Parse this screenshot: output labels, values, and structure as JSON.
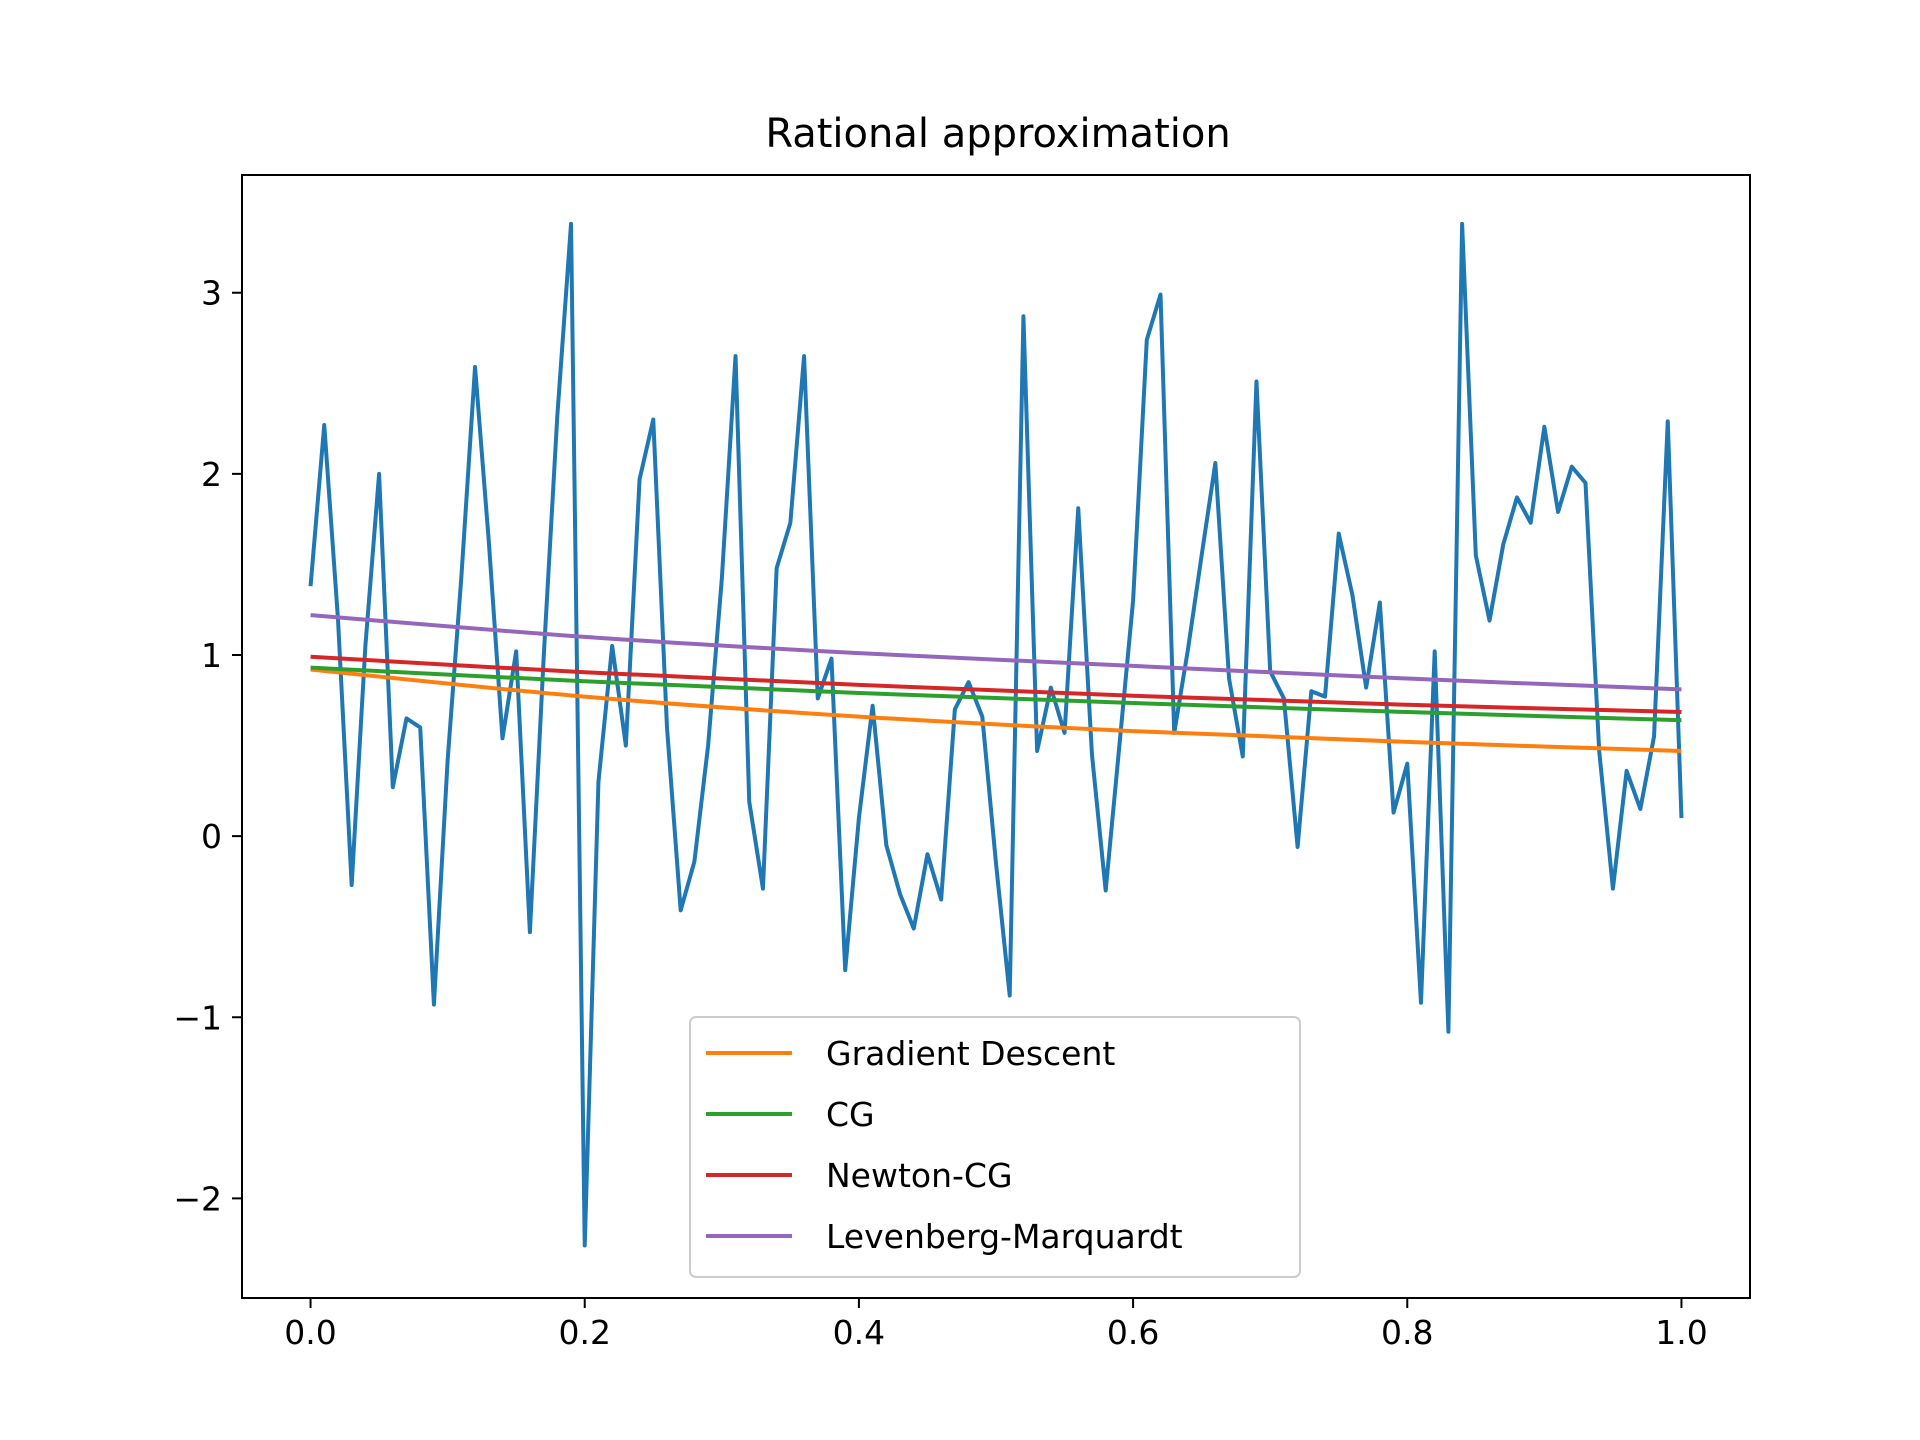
{
  "chart_data": {
    "type": "line",
    "title": "Rational approximation",
    "xlabel": "",
    "ylabel": "",
    "xlim": [
      -0.05,
      1.05
    ],
    "ylim": [
      -2.55,
      3.65
    ],
    "xticks": [
      {
        "value": 0.0,
        "label": "0.0"
      },
      {
        "value": 0.2,
        "label": "0.2"
      },
      {
        "value": 0.4,
        "label": "0.4"
      },
      {
        "value": 0.6,
        "label": "0.6"
      },
      {
        "value": 0.8,
        "label": "0.8"
      },
      {
        "value": 1.0,
        "label": "1.0"
      }
    ],
    "yticks": [
      {
        "value": -2,
        "label": "−2"
      },
      {
        "value": -1,
        "label": "−1"
      },
      {
        "value": 0,
        "label": "0"
      },
      {
        "value": 1,
        "label": "1"
      },
      {
        "value": 2,
        "label": "2"
      },
      {
        "value": 3,
        "label": "3"
      }
    ],
    "grid": false,
    "legend_position": "lower-center",
    "data_series": {
      "color": "#1f77b4",
      "x_start": 0.0,
      "x_step": 0.01,
      "values": [
        1.38,
        2.27,
        1.2,
        -0.27,
        1.05,
        2.0,
        0.27,
        0.65,
        0.6,
        -0.93,
        0.42,
        1.43,
        2.59,
        1.63,
        0.54,
        1.02,
        -0.53,
        0.98,
        2.32,
        3.38,
        -2.26,
        0.3,
        1.05,
        0.5,
        1.97,
        2.3,
        0.6,
        -0.41,
        -0.14,
        0.5,
        1.42,
        2.65,
        0.19,
        -0.29,
        1.48,
        1.73,
        2.65,
        0.76,
        0.98,
        -0.74,
        0.1,
        0.72,
        -0.05,
        -0.32,
        -0.51,
        -0.1,
        -0.35,
        0.7,
        0.85,
        0.66,
        -0.15,
        -0.88,
        2.87,
        0.47,
        0.82,
        0.57,
        1.81,
        0.45,
        -0.3,
        0.5,
        1.3,
        2.74,
        2.99,
        0.57,
        1.03,
        1.55,
        2.06,
        0.87,
        0.44,
        2.51,
        0.91,
        0.76,
        -0.06,
        0.8,
        0.77,
        1.67,
        1.33,
        0.82,
        1.29,
        0.13,
        0.4,
        -0.92,
        1.02,
        -1.08,
        3.38,
        1.55,
        1.19,
        1.61,
        1.87,
        1.73,
        2.26,
        1.79,
        2.04,
        1.95,
        0.47,
        -0.29,
        0.36,
        0.15,
        0.55,
        2.29,
        0.1
      ]
    },
    "series": [
      {
        "name": "Gradient Descent",
        "color": "#ff7f0e",
        "x": [
          0.0,
          0.2,
          0.4,
          0.6,
          0.8,
          1.0
        ],
        "values": [
          0.92,
          0.77,
          0.66,
          0.58,
          0.52,
          0.47
        ]
      },
      {
        "name": "CG",
        "color": "#2ca02c",
        "x": [
          0.0,
          0.2,
          0.4,
          0.6,
          0.8,
          1.0
        ],
        "values": [
          0.93,
          0.855,
          0.79,
          0.735,
          0.685,
          0.64
        ]
      },
      {
        "name": "Newton-CG",
        "color": "#d62728",
        "x": [
          0.0,
          0.2,
          0.4,
          0.6,
          0.8,
          1.0
        ],
        "values": [
          0.99,
          0.905,
          0.835,
          0.775,
          0.725,
          0.685
        ]
      },
      {
        "name": "Levenberg-Marquardt",
        "color": "#9467bd",
        "x": [
          0.0,
          0.2,
          0.4,
          0.6,
          0.8,
          1.0
        ],
        "values": [
          1.22,
          1.1,
          1.01,
          0.94,
          0.87,
          0.81
        ]
      }
    ]
  }
}
